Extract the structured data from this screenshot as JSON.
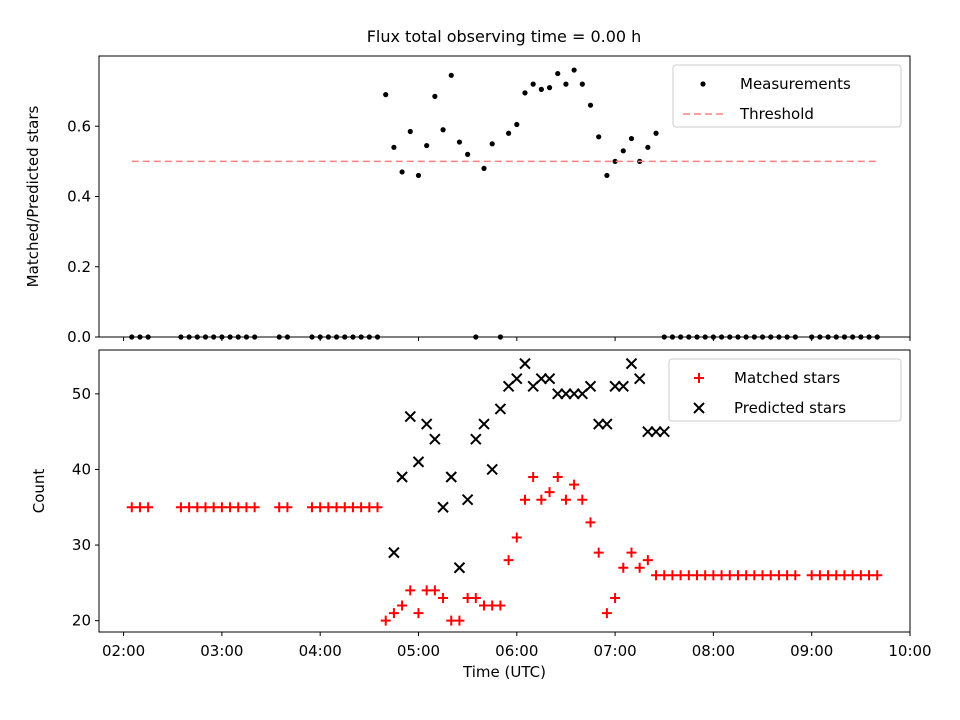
{
  "figure_title": "Flux total observing time = 0.00 h",
  "chart_data": [
    {
      "type": "scatter",
      "title": "Flux total observing time = 0.00 h",
      "xlabel": "",
      "ylabel": "Matched/Predicted stars",
      "xlim": [
        "01:45",
        "10:00"
      ],
      "ylim": [
        0,
        0.8
      ],
      "yticks": [
        0.0,
        0.2,
        0.4,
        0.6
      ],
      "yticklabels": [
        "0.0",
        "0.2",
        "0.4",
        "0.6"
      ],
      "grid": false,
      "legend": "top-right",
      "colors": {
        "measurements": "#000000",
        "threshold": "#ff8080"
      },
      "series": [
        {
          "name": "Measurements",
          "marker": "dot",
          "x": [
            "02:05",
            "02:10",
            "02:15",
            "02:35",
            "02:40",
            "02:45",
            "02:50",
            "02:55",
            "03:00",
            "03:05",
            "03:10",
            "03:15",
            "03:20",
            "03:35",
            "03:40",
            "03:55",
            "04:00",
            "04:05",
            "04:10",
            "04:15",
            "04:20",
            "04:25",
            "04:30",
            "04:35",
            "04:40",
            "04:45",
            "04:50",
            "04:55",
            "05:00",
            "05:05",
            "05:10",
            "05:15",
            "05:20",
            "05:25",
            "05:30",
            "05:35",
            "05:40",
            "05:45",
            "05:50",
            "05:55",
            "06:00",
            "06:05",
            "06:10",
            "06:15",
            "06:20",
            "06:25",
            "06:30",
            "06:35",
            "06:40",
            "06:45",
            "06:50",
            "06:55",
            "07:00",
            "07:05",
            "07:10",
            "07:15",
            "07:20",
            "07:25",
            "07:30",
            "07:35",
            "07:40",
            "07:45",
            "07:50",
            "07:55",
            "08:00",
            "08:05",
            "08:10",
            "08:15",
            "08:20",
            "08:25",
            "08:30",
            "08:35",
            "08:40",
            "08:45",
            "08:50",
            "09:00",
            "09:05",
            "09:10",
            "09:15",
            "09:20",
            "09:25",
            "09:30",
            "09:35",
            "09:40"
          ],
          "y": [
            0,
            0,
            0,
            0,
            0,
            0,
            0,
            0,
            0,
            0,
            0,
            0,
            0,
            0,
            0,
            0,
            0,
            0,
            0,
            0,
            0,
            0,
            0,
            0,
            0.69,
            0.54,
            0.47,
            0.585,
            0.46,
            0.545,
            0.685,
            0.59,
            0.745,
            0.555,
            0.52,
            0,
            0.48,
            0.55,
            0,
            0.58,
            0.605,
            0.695,
            0.72,
            0.705,
            0.71,
            0.75,
            0.72,
            0.76,
            0.72,
            0.66,
            0.57,
            0.46,
            0.5,
            0.53,
            0.565,
            0.5,
            0.54,
            0.58,
            0,
            0,
            0,
            0,
            0,
            0,
            0,
            0,
            0,
            0,
            0,
            0,
            0,
            0,
            0,
            0,
            0,
            0,
            0,
            0,
            0,
            0,
            0,
            0,
            0,
            0
          ]
        },
        {
          "name": "Threshold",
          "line": "dashed",
          "x": [
            "02:05",
            "09:40"
          ],
          "y": [
            0.5,
            0.5
          ]
        }
      ]
    },
    {
      "type": "scatter",
      "title": "",
      "xlabel": "Time (UTC)",
      "ylabel": "Count",
      "xlim": [
        "01:45",
        "10:00"
      ],
      "ylim": [
        18.5,
        55.8
      ],
      "xticks": [
        "02:00",
        "03:00",
        "04:00",
        "05:00",
        "06:00",
        "07:00",
        "08:00",
        "09:00",
        "10:00"
      ],
      "yticks": [
        20,
        30,
        40,
        50
      ],
      "grid": false,
      "legend": "top-right",
      "colors": {
        "matched": "#ff0000",
        "predicted": "#000000"
      },
      "series": [
        {
          "name": "Matched stars",
          "marker": "plus",
          "x": [
            "02:05",
            "02:10",
            "02:15",
            "02:35",
            "02:40",
            "02:45",
            "02:50",
            "02:55",
            "03:00",
            "03:05",
            "03:10",
            "03:15",
            "03:20",
            "03:35",
            "03:40",
            "03:55",
            "04:00",
            "04:05",
            "04:10",
            "04:15",
            "04:20",
            "04:25",
            "04:30",
            "04:35",
            "04:40",
            "04:45",
            "04:50",
            "04:55",
            "05:00",
            "05:05",
            "05:10",
            "05:15",
            "05:20",
            "05:25",
            "05:30",
            "05:35",
            "05:40",
            "05:45",
            "05:50",
            "05:55",
            "06:00",
            "06:05",
            "06:10",
            "06:15",
            "06:20",
            "06:25",
            "06:30",
            "06:35",
            "06:40",
            "06:45",
            "06:50",
            "06:55",
            "07:00",
            "07:05",
            "07:10",
            "07:15",
            "07:20",
            "07:25",
            "07:30",
            "07:35",
            "07:40",
            "07:45",
            "07:50",
            "07:55",
            "08:00",
            "08:05",
            "08:10",
            "08:15",
            "08:20",
            "08:25",
            "08:30",
            "08:35",
            "08:40",
            "08:45",
            "08:50",
            "09:00",
            "09:05",
            "09:10",
            "09:15",
            "09:20",
            "09:25",
            "09:30",
            "09:35",
            "09:40"
          ],
          "y": [
            35,
            35,
            35,
            35,
            35,
            35,
            35,
            35,
            35,
            35,
            35,
            35,
            35,
            35,
            35,
            35,
            35,
            35,
            35,
            35,
            35,
            35,
            35,
            35,
            20,
            21,
            22,
            24,
            21,
            24,
            24,
            23,
            20,
            20,
            23,
            23,
            22,
            22,
            22,
            28,
            31,
            36,
            39,
            36,
            37,
            39,
            36,
            38,
            36,
            33,
            29,
            21,
            23,
            27,
            29,
            27,
            28,
            26,
            26,
            26,
            26,
            26,
            26,
            26,
            26,
            26,
            26,
            26,
            26,
            26,
            26,
            26,
            26,
            26,
            26,
            26,
            26,
            26,
            26,
            26,
            26,
            26,
            26,
            26
          ]
        },
        {
          "name": "Predicted stars",
          "marker": "x",
          "x": [
            "04:45",
            "04:50",
            "04:55",
            "05:00",
            "05:05",
            "05:10",
            "05:15",
            "05:20",
            "05:25",
            "05:30",
            "05:35",
            "05:40",
            "05:45",
            "05:50",
            "05:55",
            "06:00",
            "06:05",
            "06:10",
            "06:15",
            "06:20",
            "06:25",
            "06:30",
            "06:35",
            "06:40",
            "06:45",
            "06:50",
            "06:55",
            "07:00",
            "07:05",
            "07:10",
            "07:15",
            "07:20",
            "07:25",
            "07:30"
          ],
          "y": [
            29,
            39,
            47,
            41,
            46,
            44,
            35,
            39,
            27,
            36,
            44,
            46,
            40,
            48,
            51,
            52,
            54,
            51,
            52,
            52,
            50,
            50,
            50,
            50,
            51,
            46,
            46,
            51,
            51,
            54,
            52,
            45,
            45,
            45
          ]
        }
      ]
    }
  ]
}
